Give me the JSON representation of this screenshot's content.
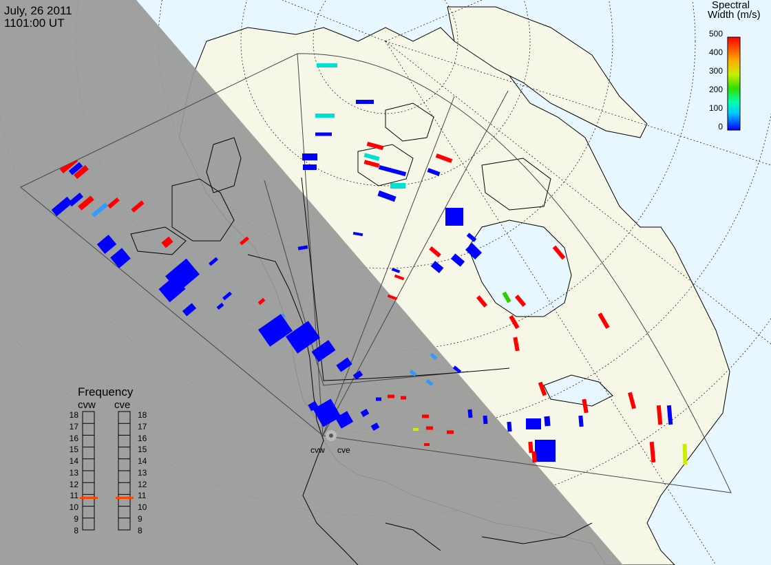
{
  "header": {
    "date": "July, 26 2011",
    "time": "1101:00 UT"
  },
  "colorbar": {
    "title_line1": "Spectral",
    "title_line2": "Width (m/s)",
    "min": 0,
    "max": 500,
    "ticks": [
      "500",
      "400",
      "300",
      "200",
      "100",
      "0"
    ],
    "gradient": [
      "#0000ff",
      "#00c8ff",
      "#00ffaa",
      "#33dd00",
      "#ccee00",
      "#ffaa00",
      "#ff0000"
    ]
  },
  "frequency": {
    "title": "Frequency",
    "radars": [
      {
        "name": "cvw",
        "selected_mhz": 11
      },
      {
        "name": "cve",
        "selected_mhz": 11
      }
    ],
    "scale": [
      "18",
      "17",
      "16",
      "15",
      "14",
      "13",
      "12",
      "11",
      "10",
      "9",
      "8"
    ]
  },
  "sites": [
    "cvw",
    "cve"
  ],
  "colors": {
    "night": "#999999",
    "land": "#f7f7e8",
    "ocean": "#e8f6fd",
    "coast": "#000000",
    "marker": "#ff4400"
  }
}
